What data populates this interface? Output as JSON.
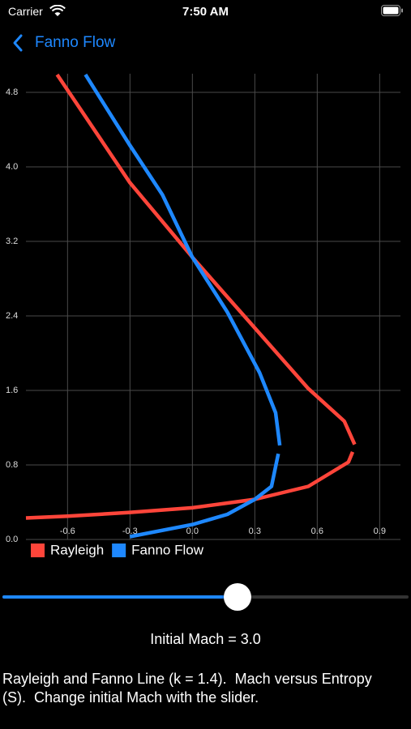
{
  "status_bar": {
    "carrier": "Carrier",
    "time": "7:50 AM"
  },
  "nav": {
    "back_title": "Fanno Flow"
  },
  "chart_data": {
    "type": "line",
    "xlim": [
      -0.8,
      1.0
    ],
    "ylim": [
      0,
      5.0
    ],
    "xticks": [
      -0.6,
      -0.3,
      {
        "value": 0,
        "label": "0.0"
      },
      0.3,
      0.6,
      0.9
    ],
    "yticks": [
      {
        "value": 0,
        "label": "0.0"
      },
      0.8,
      1.6,
      2.4,
      3.2,
      {
        "value": 4,
        "label": "4.0"
      },
      4.8
    ],
    "grid": true,
    "series": [
      {
        "name": "Rayleigh",
        "color": "#ff453a",
        "x": [
          -0.65,
          -0.3,
          0,
          0.284,
          0.557,
          0.73,
          0.78,
          null,
          0.77,
          0.75,
          0.557,
          0.3,
          0,
          -0.3,
          -0.6,
          -0.8
        ],
        "values": [
          4.99,
          3.83,
          3.03,
          2.31,
          1.62,
          1.27,
          1.02,
          null,
          0.94,
          0.83,
          0.57,
          0.43,
          0.34,
          0.29,
          0.25,
          0.23
        ]
      },
      {
        "name": "Fanno Flow",
        "color": "#1e88ff",
        "x": [
          -0.514,
          -0.3,
          -0.144,
          0,
          0.168,
          0.323,
          0.4,
          0.42,
          null,
          0.413,
          0.38,
          0.3,
          0.168,
          0,
          -0.3
        ],
        "values": [
          4.99,
          4.23,
          3.7,
          3.03,
          2.44,
          1.79,
          1.36,
          1.01,
          null,
          0.92,
          0.57,
          0.43,
          0.27,
          0.16,
          0.03
        ]
      }
    ]
  },
  "initial_mach_label": "Initial Mach = 3.0",
  "description": "Rayleigh and Fanno Line (k = 1.4).  Mach versus Entropy (S).  Change initial Mach with the slider."
}
